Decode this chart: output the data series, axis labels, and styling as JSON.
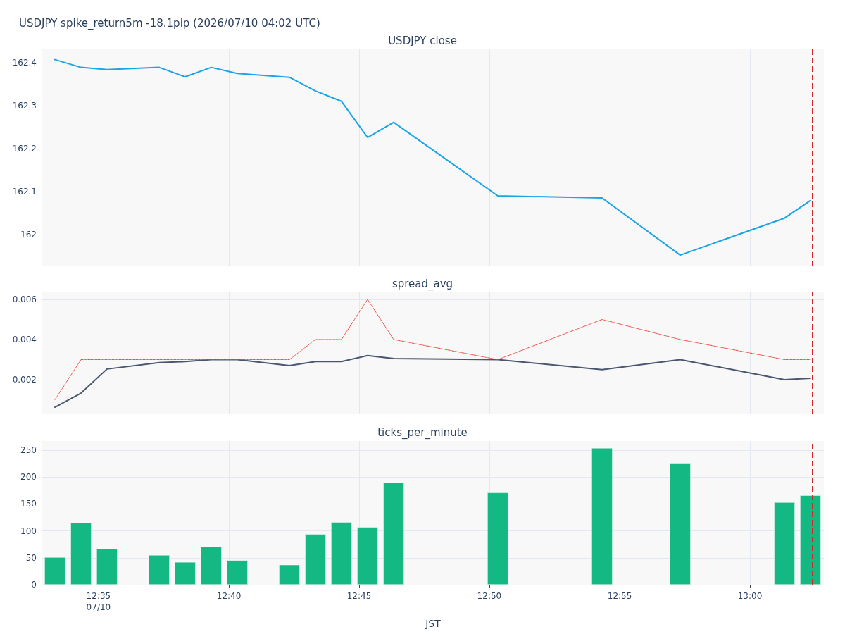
{
  "chart_data": [
    {
      "type": "line",
      "title": "USDJPY spike_return5m -18.1pip (2026/07/10 04:02 UTC)",
      "subtitle": "USDJPY close",
      "x": [
        12.5554,
        12.5721,
        12.5887,
        12.6221,
        12.6387,
        12.6554,
        12.6721,
        12.7054,
        12.7221,
        12.7387,
        12.7554,
        12.7721,
        12.8387,
        12.9054,
        12.9554,
        13.0221,
        13.0387
      ],
      "series": [
        {
          "color": "#19a3e8",
          "values": [
            162.407,
            162.389,
            162.384,
            162.389,
            162.367,
            162.389,
            162.375,
            162.366,
            162.334,
            162.31,
            162.226,
            162.261,
            162.09,
            162.085,
            161.952,
            162.038,
            162.079
          ]
        }
      ],
      "xlim": [
        12.5473,
        13.0473
      ],
      "xticks": [
        {
          "value": 12.5833,
          "label": null
        },
        {
          "value": 12.6667,
          "label": null
        },
        {
          "value": 12.75,
          "label": null
        },
        {
          "value": 12.8333,
          "label": null
        },
        {
          "value": 12.9167,
          "label": null
        },
        {
          "value": 13,
          "label": null
        }
      ],
      "ylim": [
        161.926,
        162.431
      ],
      "yticks": [
        162,
        162.1,
        162.2,
        162.3,
        162.4
      ],
      "tick_labels": "y",
      "grid": true,
      "ref_lines": [
        {
          "axis": "x",
          "value": 13.0387,
          "color": "#d62728",
          "line_style": "dashed"
        }
      ]
    },
    {
      "type": "line",
      "title": "spread_avg",
      "x": [
        12.5554,
        12.5721,
        12.5887,
        12.6221,
        12.6387,
        12.6554,
        12.6721,
        12.7054,
        12.7221,
        12.7387,
        12.7554,
        12.7721,
        12.8387,
        12.9054,
        12.9554,
        13.0221,
        13.0387
      ],
      "series": [
        {
          "color": "#4a5670",
          "line_style": "solid",
          "values": [
            0.00063,
            0.00133,
            0.00253,
            0.00285,
            0.0029,
            0.003,
            0.003,
            0.0027,
            0.0029,
            0.0029,
            0.0032,
            0.00305,
            0.003,
            0.0025,
            0.003,
            0.002,
            0.00207
          ]
        },
        {
          "color": "#f0483c",
          "line_style": "dotted",
          "values": [
            0.001,
            0.003,
            0.003,
            0.003,
            0.003,
            0.003,
            0.003,
            0.003,
            0.004,
            0.004,
            0.006,
            0.004,
            0.003,
            0.005,
            0.004,
            0.003,
            0.003
          ]
        }
      ],
      "xlim": [
        12.5473,
        13.0473
      ],
      "xticks": [
        {
          "value": 12.5833,
          "label": null
        },
        {
          "value": 12.6667,
          "label": null
        },
        {
          "value": 12.75,
          "label": null
        },
        {
          "value": 12.8333,
          "label": null
        },
        {
          "value": 12.9167,
          "label": null
        },
        {
          "value": 13,
          "label": null
        }
      ],
      "ylim": [
        0.00028,
        0.00635
      ],
      "yticks": [
        0.002,
        0.004,
        0.006
      ],
      "tick_labels": "y",
      "grid": true,
      "ref_lines": [
        {
          "axis": "x",
          "value": 13.0387,
          "color": "#d62728",
          "line_style": "dashed"
        }
      ]
    },
    {
      "type": "bar",
      "title": "ticks_per_minute",
      "xlabel": "JST",
      "x": [
        12.5554,
        12.5721,
        12.5887,
        12.6221,
        12.6387,
        12.6554,
        12.6721,
        12.7054,
        12.7221,
        12.7387,
        12.7554,
        12.7721,
        12.8387,
        12.9054,
        12.9554,
        13.0221,
        13.0387
      ],
      "series": [
        {
          "color": "#13b883",
          "values": [
            51,
            115,
            67,
            55,
            42,
            71,
            45,
            37,
            94,
            116,
            107,
            190,
            171,
            254,
            226,
            153,
            166
          ]
        }
      ],
      "xlim": [
        12.5473,
        13.0473
      ],
      "xticks": [
        {
          "value": 12.5833,
          "label": "12:35\n07/10"
        },
        {
          "value": 12.6667,
          "label": "12:40"
        },
        {
          "value": 12.75,
          "label": "12:45"
        },
        {
          "value": 12.8333,
          "label": "12:50"
        },
        {
          "value": 12.9167,
          "label": "12:55"
        },
        {
          "value": 13,
          "label": "13:00"
        }
      ],
      "ylim": [
        0,
        267
      ],
      "yticks": [
        0,
        50,
        100,
        150,
        200,
        250
      ],
      "grid": true,
      "ref_lines": [
        {
          "axis": "x",
          "value": 13.0387,
          "color": "#d62728",
          "line_style": "dashed"
        }
      ]
    }
  ]
}
